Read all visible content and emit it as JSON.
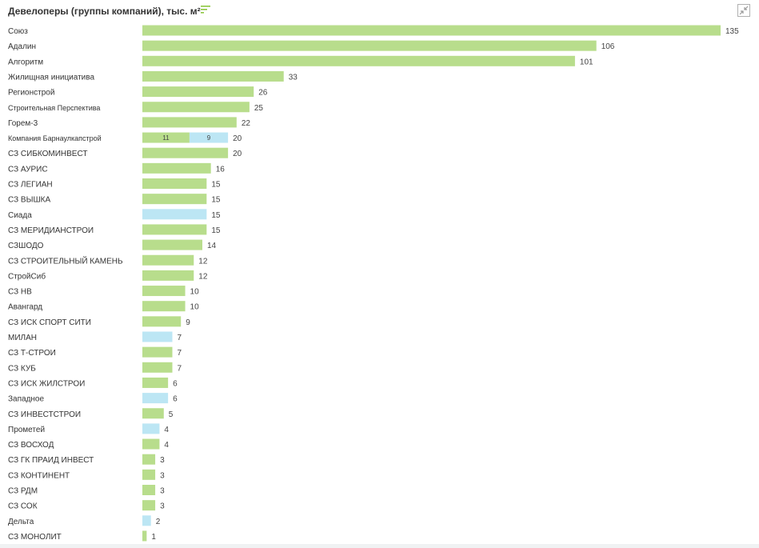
{
  "header": {
    "title": "Девелоперы (группы компаний), тыс. м²",
    "sort_icon": "sort-lines-icon",
    "collapse_icon": "collapse-arrows-icon"
  },
  "colors": {
    "green": "#b8dd8c",
    "blue": "#bce6f4",
    "label": "#333333",
    "value": "#444444"
  },
  "chart_data": {
    "type": "bar",
    "orientation": "horizontal",
    "stacked": true,
    "title": "Девелоперы (группы компаний), тыс. м²",
    "xlim": [
      0,
      135
    ],
    "grid": false,
    "rows": [
      {
        "label": "Союз",
        "total": 135,
        "segments": [
          {
            "value": 135,
            "color": "green"
          }
        ]
      },
      {
        "label": "Адалин",
        "total": 106,
        "segments": [
          {
            "value": 106,
            "color": "green"
          }
        ]
      },
      {
        "label": "Алгоритм",
        "total": 101,
        "segments": [
          {
            "value": 101,
            "color": "green"
          }
        ]
      },
      {
        "label": "Жилищная инициатива",
        "total": 33,
        "segments": [
          {
            "value": 33,
            "color": "green"
          }
        ]
      },
      {
        "label": "Регионстрой",
        "total": 26,
        "segments": [
          {
            "value": 26,
            "color": "green"
          }
        ]
      },
      {
        "label": "Строительная Перспектива",
        "total": 25,
        "segments": [
          {
            "value": 25,
            "color": "green"
          }
        ]
      },
      {
        "label": "Горем-3",
        "total": 22,
        "segments": [
          {
            "value": 22,
            "color": "green"
          }
        ]
      },
      {
        "label": "Компания Барнаулкапстрой",
        "total": 20,
        "segments": [
          {
            "value": 11,
            "color": "green",
            "label": "11"
          },
          {
            "value": 9,
            "color": "blue",
            "label": "9"
          }
        ]
      },
      {
        "label": "СЗ СИБКОМИНВЕСТ",
        "total": 20,
        "segments": [
          {
            "value": 20,
            "color": "green"
          }
        ]
      },
      {
        "label": "СЗ АУРИС",
        "total": 16,
        "segments": [
          {
            "value": 16,
            "color": "green"
          }
        ]
      },
      {
        "label": "СЗ ЛЕГИАН",
        "total": 15,
        "segments": [
          {
            "value": 15,
            "color": "green"
          }
        ]
      },
      {
        "label": "СЗ ВЫШКА",
        "total": 15,
        "segments": [
          {
            "value": 15,
            "color": "green"
          }
        ]
      },
      {
        "label": "Сиада",
        "total": 15,
        "segments": [
          {
            "value": 15,
            "color": "blue"
          }
        ]
      },
      {
        "label": "СЗ МЕРИДИАНСТРОИ",
        "total": 15,
        "segments": [
          {
            "value": 15,
            "color": "green"
          }
        ]
      },
      {
        "label": "СЗШОДО",
        "total": 14,
        "segments": [
          {
            "value": 14,
            "color": "green"
          }
        ]
      },
      {
        "label": "СЗ СТРОИТЕЛЬНЫЙ КАМЕНЬ",
        "total": 12,
        "segments": [
          {
            "value": 12,
            "color": "green"
          }
        ]
      },
      {
        "label": "СтройСиб",
        "total": 12,
        "segments": [
          {
            "value": 12,
            "color": "green"
          }
        ]
      },
      {
        "label": "СЗ НВ",
        "total": 10,
        "segments": [
          {
            "value": 10,
            "color": "green"
          }
        ]
      },
      {
        "label": "Авангард",
        "total": 10,
        "segments": [
          {
            "value": 10,
            "color": "green"
          }
        ]
      },
      {
        "label": "СЗ ИСК СПОРТ СИТИ",
        "total": 9,
        "segments": [
          {
            "value": 9,
            "color": "green"
          }
        ]
      },
      {
        "label": "МИЛАН",
        "total": 7,
        "segments": [
          {
            "value": 7,
            "color": "blue"
          }
        ]
      },
      {
        "label": "СЗ Т-СТРОИ",
        "total": 7,
        "segments": [
          {
            "value": 7,
            "color": "green"
          }
        ]
      },
      {
        "label": "СЗ КУБ",
        "total": 7,
        "segments": [
          {
            "value": 7,
            "color": "green"
          }
        ]
      },
      {
        "label": "СЗ ИСК ЖИЛСТРОИ",
        "total": 6,
        "segments": [
          {
            "value": 6,
            "color": "green"
          }
        ]
      },
      {
        "label": "Западное",
        "total": 6,
        "segments": [
          {
            "value": 6,
            "color": "blue"
          }
        ]
      },
      {
        "label": "СЗ ИНВЕСТСТРОИ",
        "total": 5,
        "segments": [
          {
            "value": 5,
            "color": "green"
          }
        ]
      },
      {
        "label": "Прометей",
        "total": 4,
        "segments": [
          {
            "value": 4,
            "color": "blue"
          }
        ]
      },
      {
        "label": "СЗ ВОСХОД",
        "total": 4,
        "segments": [
          {
            "value": 4,
            "color": "green"
          }
        ]
      },
      {
        "label": "СЗ ГК ПРАИД ИНВЕСТ",
        "total": 3,
        "segments": [
          {
            "value": 3,
            "color": "green"
          }
        ]
      },
      {
        "label": "СЗ КОНТИНЕНТ",
        "total": 3,
        "segments": [
          {
            "value": 3,
            "color": "green"
          }
        ]
      },
      {
        "label": "СЗ РДМ",
        "total": 3,
        "segments": [
          {
            "value": 3,
            "color": "green"
          }
        ]
      },
      {
        "label": "СЗ СОК",
        "total": 3,
        "segments": [
          {
            "value": 3,
            "color": "green"
          }
        ]
      },
      {
        "label": "Дельта",
        "total": 2,
        "segments": [
          {
            "value": 2,
            "color": "blue"
          }
        ]
      },
      {
        "label": "СЗ МОНОЛИТ",
        "total": 1,
        "segments": [
          {
            "value": 1,
            "color": "green"
          }
        ]
      }
    ]
  }
}
